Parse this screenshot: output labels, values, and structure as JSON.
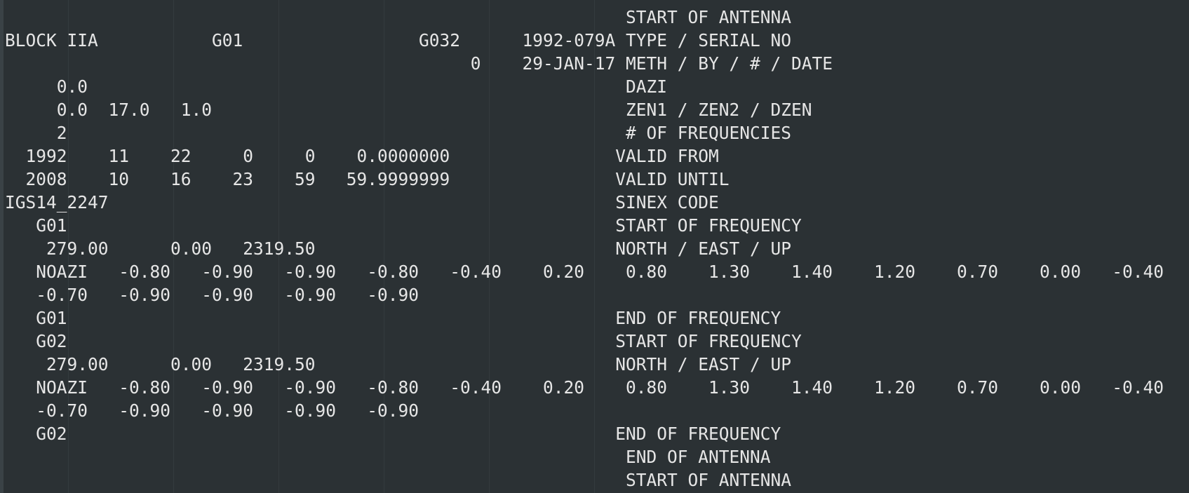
{
  "editor": {
    "lines": [
      "                                                            START OF ANTENNA",
      "BLOCK IIA           G01                 G032      1992-079A TYPE / SERIAL NO",
      "                                             0    29-JAN-17 METH / BY / # / DATE",
      "     0.0                                                    DAZI",
      "     0.0  17.0   1.0                                        ZEN1 / ZEN2 / DZEN",
      "     2                                                      # OF FREQUENCIES",
      "  1992    11    22     0     0    0.0000000                VALID FROM",
      "  2008    10    16    23    59   59.9999999                VALID UNTIL",
      "IGS14_2247                                                 SINEX CODE",
      "   G01                                                     START OF FREQUENCY",
      "    279.00      0.00   2319.50                             NORTH / EAST / UP",
      "   NOAZI   -0.80   -0.90   -0.90   -0.80   -0.40    0.20    0.80    1.30    1.40    1.20    0.70    0.00   -0.40",
      "   -0.70   -0.90   -0.90   -0.90   -0.90",
      "   G01                                                     END OF FREQUENCY",
      "   G02                                                     START OF FREQUENCY",
      "    279.00      0.00   2319.50                             NORTH / EAST / UP",
      "   NOAZI   -0.80   -0.90   -0.90   -0.80   -0.40    0.20    0.80    1.30    1.40    1.20    0.70    0.00   -0.40",
      "   -0.70   -0.90   -0.90   -0.90   -0.90",
      "   G02                                                     END OF FREQUENCY",
      "                                                            END OF ANTENNA",
      "                                                            START OF ANTENNA"
    ]
  }
}
